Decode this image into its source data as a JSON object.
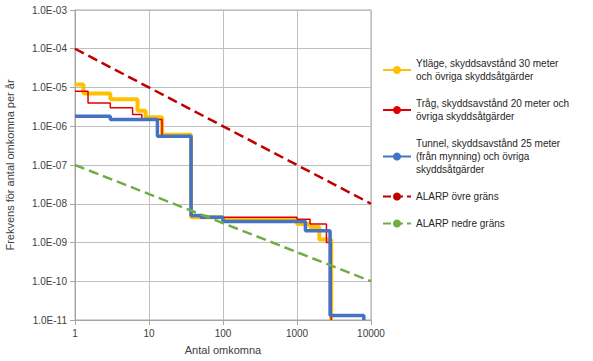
{
  "chart_data": {
    "type": "line",
    "x_label": "Antal omkomna",
    "y_label": "Frekvens för antal omkomna per år",
    "log": true,
    "grid": true,
    "legend": "right",
    "xlim": [
      1,
      10000
    ],
    "ylim": [
      1e-11,
      0.001
    ],
    "xticks": [
      1,
      10,
      100,
      1000,
      10000
    ],
    "yticks": [
      {
        "value": 1e-11,
        "label": "1.0E-11"
      },
      {
        "value": 1e-10,
        "label": "1.0E-10"
      },
      {
        "value": 1e-09,
        "label": "1.0E-09"
      },
      {
        "value": 1e-08,
        "label": "1.0E-08"
      },
      {
        "value": 1e-07,
        "label": "1.0E-07"
      },
      {
        "value": 1e-06,
        "label": "1.0E-06"
      },
      {
        "value": 1e-05,
        "label": "1.0E-05"
      },
      {
        "value": 0.0001,
        "label": "1.0E-04"
      },
      {
        "value": 0.001,
        "label": "1.0E-03"
      }
    ],
    "series": [
      {
        "name": "Ytläge, skyddsavstånd 30 meter och övriga skyddsåtgärder",
        "type": "step",
        "color": "#FFC000",
        "line_style": "solid",
        "marker": "none",
        "x": [
          1,
          1.3,
          3,
          7,
          9,
          15,
          37,
          100,
          1000,
          1500,
          2000,
          2900
        ],
        "values": [
          1.2e-05,
          7e-06,
          5e-06,
          2.5e-06,
          1.7e-06,
          6e-07,
          4.5e-09,
          3.8e-09,
          3e-09,
          2.5e-09,
          1.2e-09,
          1e-11
        ]
      },
      {
        "name": "Tråg, skyddsavstånd 20 meter och övriga skyddsåtgärder",
        "type": "step",
        "color": "#E00000",
        "line_style": "solid",
        "marker": "none",
        "x": [
          1,
          1.5,
          3,
          6,
          8,
          15,
          37,
          60,
          1000,
          1500,
          2500,
          2900
        ],
        "values": [
          8e-06,
          4e-06,
          3e-06,
          2e-06,
          1.5e-06,
          5.5e-07,
          5e-09,
          4.5e-09,
          4e-09,
          3e-09,
          1e-09,
          1e-11
        ]
      },
      {
        "name": "Tunnel, skyddsavstånd 25 meter (från mynning) och övriga skyddsåtgärder",
        "type": "step",
        "color": "#4472C4",
        "line_style": "solid",
        "marker": "none",
        "x": [
          1,
          3,
          13,
          37,
          50,
          100,
          1300,
          2800,
          8000
        ],
        "values": [
          1.8e-06,
          1.5e-06,
          5.5e-07,
          5e-09,
          4.5e-09,
          3.5e-09,
          2e-09,
          1.3e-11,
          1e-11
        ]
      },
      {
        "name": "ALARP övre gräns",
        "type": "line",
        "color": "#C00000",
        "line_style": "dashed",
        "marker": "none",
        "x": [
          1,
          10000
        ],
        "values": [
          0.0001,
          1e-08
        ]
      },
      {
        "name": "ALARP nedre gräns",
        "type": "line",
        "color": "#70AD47",
        "line_style": "dashed",
        "marker": "none",
        "x": [
          1,
          10000
        ],
        "values": [
          1e-07,
          1e-10
        ]
      }
    ]
  }
}
